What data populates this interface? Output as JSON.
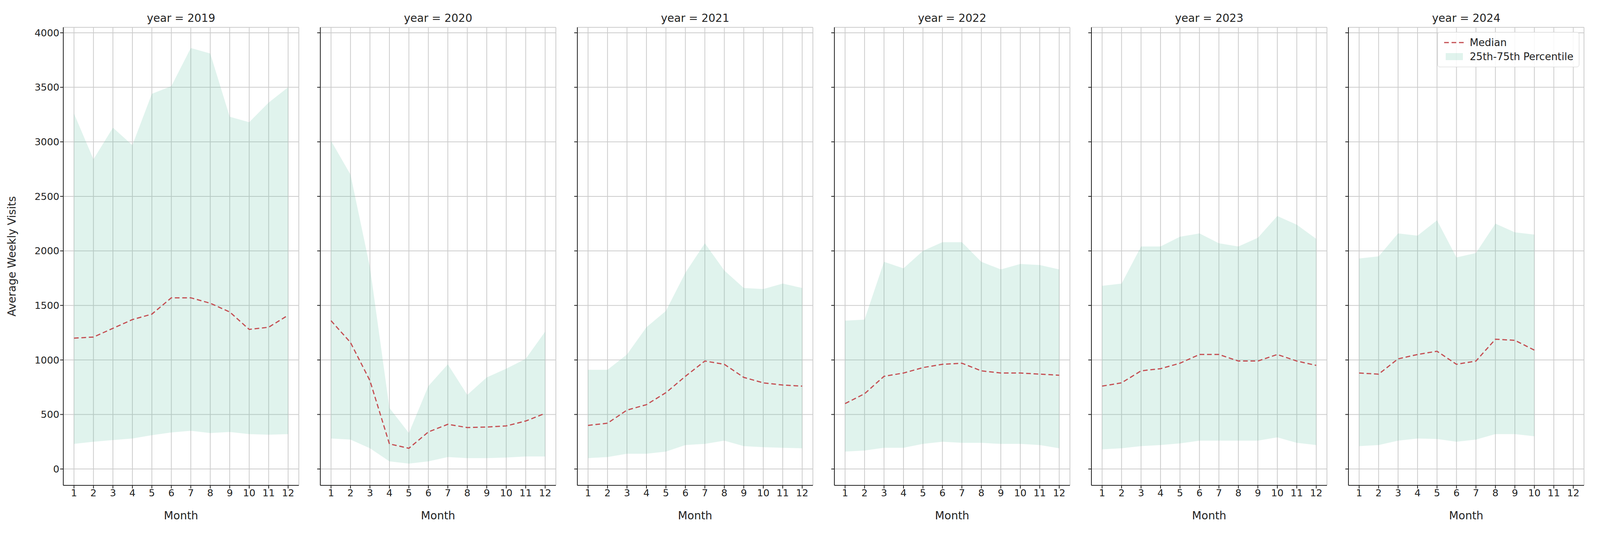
{
  "chart_data": [
    {
      "type": "line",
      "title": "year = 2019",
      "xlabel": "Month",
      "ylabel": "Average Weekly Visits",
      "x": [
        1,
        2,
        3,
        4,
        5,
        6,
        7,
        8,
        9,
        10,
        11,
        12
      ],
      "xlim": [
        0.45,
        12.55
      ],
      "xticks": [
        1,
        2,
        3,
        4,
        5,
        6,
        7,
        8,
        9,
        10,
        11,
        12
      ],
      "ylim": [
        -150,
        4050
      ],
      "yticks": [
        0,
        500,
        1000,
        1500,
        2000,
        2500,
        3000,
        3500,
        4000
      ],
      "grid": true,
      "tick_labels": true,
      "series": [
        {
          "name": "Median",
          "type": "line",
          "color": "#c44e52",
          "line_style": "dashed",
          "values": [
            1200,
            1210,
            1290,
            1370,
            1420,
            1570,
            1570,
            1520,
            1440,
            1280,
            1300,
            1410
          ]
        },
        {
          "name": "25th-75th Percentile",
          "type": "band",
          "color": "#66c2a5",
          "lower": [
            230,
            250,
            265,
            280,
            310,
            335,
            350,
            330,
            340,
            320,
            315,
            320
          ],
          "upper": [
            3260,
            2840,
            3130,
            2970,
            3440,
            3510,
            3860,
            3810,
            3230,
            3180,
            3360,
            3500
          ]
        }
      ]
    },
    {
      "type": "line",
      "title": "year = 2020",
      "xlabel": "Month",
      "x": [
        1,
        2,
        3,
        4,
        5,
        6,
        7,
        8,
        9,
        10,
        11,
        12
      ],
      "xlim": [
        0.45,
        12.55
      ],
      "xticks": [
        1,
        2,
        3,
        4,
        5,
        6,
        7,
        8,
        9,
        10,
        11,
        12
      ],
      "ylim": [
        -150,
        4050
      ],
      "yticks": [
        0,
        500,
        1000,
        1500,
        2000,
        2500,
        3000,
        3500,
        4000
      ],
      "grid": true,
      "tick_labels": "x",
      "series": [
        {
          "name": "Median",
          "type": "line",
          "color": "#c44e52",
          "line_style": "dashed",
          "values": [
            1360,
            1160,
            810,
            230,
            190,
            340,
            410,
            380,
            385,
            395,
            440,
            510
          ]
        },
        {
          "name": "25th-75th Percentile",
          "type": "band",
          "color": "#66c2a5",
          "lower": [
            280,
            270,
            190,
            70,
            50,
            70,
            110,
            100,
            100,
            105,
            115,
            115
          ],
          "upper": [
            3010,
            2700,
            1850,
            560,
            330,
            760,
            960,
            680,
            840,
            920,
            1010,
            1260
          ]
        }
      ]
    },
    {
      "type": "line",
      "title": "year = 2021",
      "xlabel": "Month",
      "x": [
        1,
        2,
        3,
        4,
        5,
        6,
        7,
        8,
        9,
        10,
        11,
        12
      ],
      "xlim": [
        0.45,
        12.55
      ],
      "xticks": [
        1,
        2,
        3,
        4,
        5,
        6,
        7,
        8,
        9,
        10,
        11,
        12
      ],
      "ylim": [
        -150,
        4050
      ],
      "yticks": [
        0,
        500,
        1000,
        1500,
        2000,
        2500,
        3000,
        3500,
        4000
      ],
      "grid": true,
      "tick_labels": "x",
      "series": [
        {
          "name": "Median",
          "type": "line",
          "color": "#c44e52",
          "line_style": "dashed",
          "values": [
            400,
            420,
            540,
            590,
            700,
            850,
            990,
            960,
            840,
            790,
            770,
            760
          ]
        },
        {
          "name": "25th-75th Percentile",
          "type": "band",
          "color": "#66c2a5",
          "lower": [
            100,
            110,
            140,
            140,
            160,
            220,
            230,
            260,
            210,
            200,
            195,
            190
          ],
          "upper": [
            910,
            910,
            1050,
            1300,
            1450,
            1800,
            2070,
            1820,
            1660,
            1650,
            1700,
            1660
          ]
        }
      ]
    },
    {
      "type": "line",
      "title": "year = 2022",
      "xlabel": "Month",
      "x": [
        1,
        2,
        3,
        4,
        5,
        6,
        7,
        8,
        9,
        10,
        11,
        12
      ],
      "xlim": [
        0.45,
        12.55
      ],
      "xticks": [
        1,
        2,
        3,
        4,
        5,
        6,
        7,
        8,
        9,
        10,
        11,
        12
      ],
      "ylim": [
        -150,
        4050
      ],
      "yticks": [
        0,
        500,
        1000,
        1500,
        2000,
        2500,
        3000,
        3500,
        4000
      ],
      "grid": true,
      "tick_labels": "x",
      "series": [
        {
          "name": "Median",
          "type": "line",
          "color": "#c44e52",
          "line_style": "dashed",
          "values": [
            600,
            690,
            850,
            880,
            930,
            960,
            970,
            900,
            880,
            880,
            870,
            860
          ]
        },
        {
          "name": "25th-75th Percentile",
          "type": "band",
          "color": "#66c2a5",
          "lower": [
            160,
            170,
            195,
            195,
            230,
            250,
            240,
            240,
            230,
            230,
            220,
            190
          ],
          "upper": [
            1360,
            1370,
            1900,
            1840,
            2000,
            2080,
            2080,
            1900,
            1830,
            1880,
            1870,
            1830
          ]
        }
      ]
    },
    {
      "type": "line",
      "title": "year = 2023",
      "xlabel": "Month",
      "x": [
        1,
        2,
        3,
        4,
        5,
        6,
        7,
        8,
        9,
        10,
        11,
        12
      ],
      "xlim": [
        0.45,
        12.55
      ],
      "xticks": [
        1,
        2,
        3,
        4,
        5,
        6,
        7,
        8,
        9,
        10,
        11,
        12
      ],
      "ylim": [
        -150,
        4050
      ],
      "yticks": [
        0,
        500,
        1000,
        1500,
        2000,
        2500,
        3000,
        3500,
        4000
      ],
      "grid": true,
      "tick_labels": "x",
      "series": [
        {
          "name": "Median",
          "type": "line",
          "color": "#c44e52",
          "line_style": "dashed",
          "values": [
            760,
            790,
            900,
            920,
            970,
            1050,
            1050,
            990,
            990,
            1050,
            990,
            950
          ]
        },
        {
          "name": "25th-75th Percentile",
          "type": "band",
          "color": "#66c2a5",
          "lower": [
            180,
            190,
            210,
            220,
            235,
            260,
            260,
            260,
            260,
            290,
            240,
            220
          ],
          "upper": [
            1680,
            1700,
            2040,
            2040,
            2130,
            2160,
            2070,
            2040,
            2120,
            2320,
            2240,
            2110
          ]
        }
      ]
    },
    {
      "type": "line",
      "title": "year = 2024",
      "xlabel": "Month",
      "x": [
        1,
        2,
        3,
        4,
        5,
        6,
        7,
        8,
        9,
        10
      ],
      "xlim": [
        0.45,
        12.55
      ],
      "xticks": [
        1,
        2,
        3,
        4,
        5,
        6,
        7,
        8,
        9,
        10,
        11,
        12
      ],
      "ylim": [
        -150,
        4050
      ],
      "yticks": [
        0,
        500,
        1000,
        1500,
        2000,
        2500,
        3000,
        3500,
        4000
      ],
      "grid": true,
      "tick_labels": "x",
      "legend": "upper right",
      "series": [
        {
          "name": "Median",
          "type": "line",
          "color": "#c44e52",
          "line_style": "dashed",
          "values": [
            880,
            870,
            1010,
            1050,
            1080,
            960,
            990,
            1190,
            1180,
            1090
          ]
        },
        {
          "name": "25th-75th Percentile",
          "type": "band",
          "color": "#66c2a5",
          "lower": [
            210,
            220,
            260,
            280,
            275,
            250,
            270,
            320,
            320,
            300
          ],
          "upper": [
            1930,
            1950,
            2160,
            2140,
            2280,
            1940,
            1980,
            2250,
            2170,
            2150
          ]
        }
      ]
    }
  ]
}
